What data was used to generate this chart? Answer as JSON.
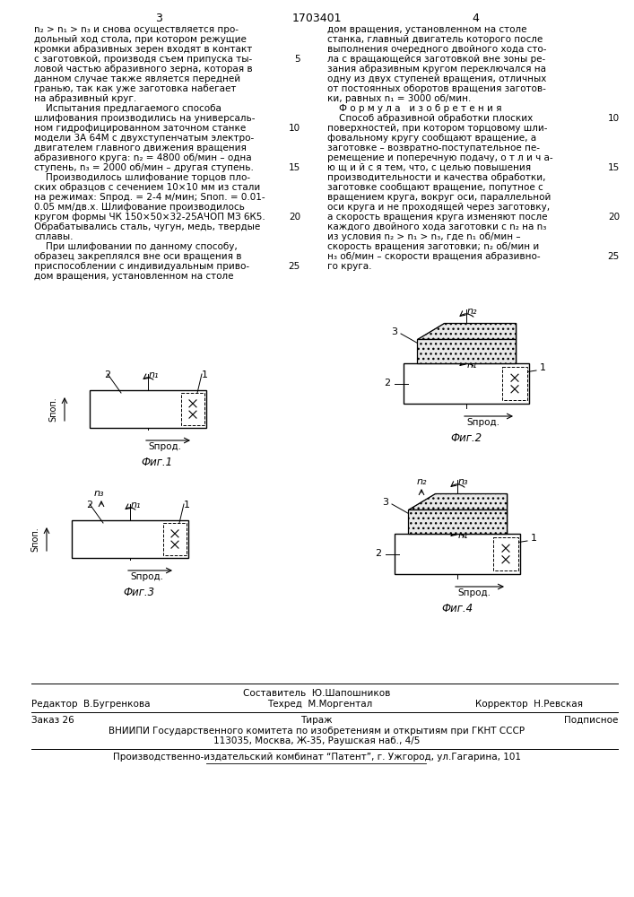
{
  "bg_color": "#ffffff",
  "page_number_left": "3",
  "page_number_center": "1703401",
  "page_number_right": "4",
  "left_col": [
    "n₂ > n₁ > n₃ и снова осуществляется про-",
    "дольный ход стола, при котором режущие",
    "кромки абразивных зерен входят в контакт",
    "с заготовкой, производя съем припуска ты-",
    "ловой частью абразивного зерна, которая в",
    "данном случае также является передней",
    "гранью, так как уже заготовка набегает",
    "на абразивный круг.",
    "    Испытания предлагаемого способа",
    "шлифования производились на универсаль-",
    "ном гидрофицированном заточном станке",
    "модели 3А 64М с двухступенчатым электро-",
    "двигателем главного движения вращения",
    "абразивного круга: n₂ = 4800 об/мин – одна",
    "ступень, n₃ = 2000 об/мин – другая ступень.",
    "    Производилось шлифование торцов пло-",
    "ских образцов с сечением 10×10 мм из стали",
    "на режимах: Sпрод. = 2-4 м/мин; Sпоп. = 0.01-",
    "0.05 мм/дв.х. Шлифование производилось",
    "кругом формы ЧК 150×50×32-25АЧОП МЗ 6К5.",
    "Обрабатывались сталь, чугун, медь, твердые",
    "сплавы.",
    "    При шлифовании по данному способу,",
    "образец закреплялся вне оси вращения в",
    "приспособлении с индивидуальным приво-",
    "дом вращения, установленном на столе"
  ],
  "right_col": [
    "дом вращения, установленном на столе",
    "станка, главный двигатель которого после",
    "выполнения очередного двойного хода сто-",
    "ла с вращающейся заготовкой вне зоны ре-",
    "зания абразивным кругом переключался на",
    "одну из двух ступеней вращения, отличных",
    "от постоянных оборотов вращения заготов-",
    "ки, равных n₁ = 3000 об/мин.",
    "    Ф о р м у л а   и з о б р е т е н и я",
    "    Способ абразивной обработки плоских",
    "поверхностей, при котором торцовому шли-",
    "фовальному кругу сообщают вращение, а",
    "заготовке – возвратно-поступательное пе-",
    "ремещение и поперечную подачу, о т л и ч а-",
    "ю щ и й с я тем, что, с целью повышения",
    "производительности и качества обработки,",
    "заготовке сообщают вращение, попутное с",
    "вращением круга, вокруг оси, параллельной",
    "оси круга и не проходящей через заготовку,",
    "а скорость вращения круга изменяют после",
    "каждого двойного хода заготовки с n₂ на n₃",
    "из условия n₂ > n₁ > n₃, где n₁ об/мин –",
    "скорость вращения заготовки; n₂ об/мин и",
    "н₃ об/мин – скорости вращения абразивно-",
    "го круга."
  ],
  "line_numbers_left": [
    null,
    null,
    null,
    "5",
    null,
    null,
    null,
    null,
    null,
    null,
    "10",
    null,
    null,
    null,
    "15",
    null,
    null,
    null,
    null,
    "20",
    null,
    null,
    null,
    null,
    "25",
    null
  ],
  "line_numbers_right": [
    null,
    null,
    null,
    null,
    null,
    null,
    null,
    null,
    null,
    "10",
    null,
    null,
    null,
    null,
    "15",
    null,
    null,
    null,
    null,
    "20",
    null,
    null,
    null,
    "25",
    null
  ],
  "footer_sestavitel": "Составитель  Ю.Шапошников",
  "footer_redaktor": "Редактор  В.Бугренкова",
  "footer_tehred": "Техред  М.Моргентал",
  "footer_korrektor": "Корректор  Н.Ревская",
  "footer_zakaz": "Заказ 26",
  "footer_tirazh": "Тираж",
  "footer_podpisnoe": "Подписное",
  "footer_vnipi": "ВНИИПИ Государственного комитета по изобретениям и открытиям при ГКНТ СССР",
  "footer_address": "113035, Москва, Ж-35, Раушская наб., 4/5",
  "footer_patent": "Производственно-издательский комбинат “Патент”, г. Ужгород, ул.Гагарина, 101"
}
